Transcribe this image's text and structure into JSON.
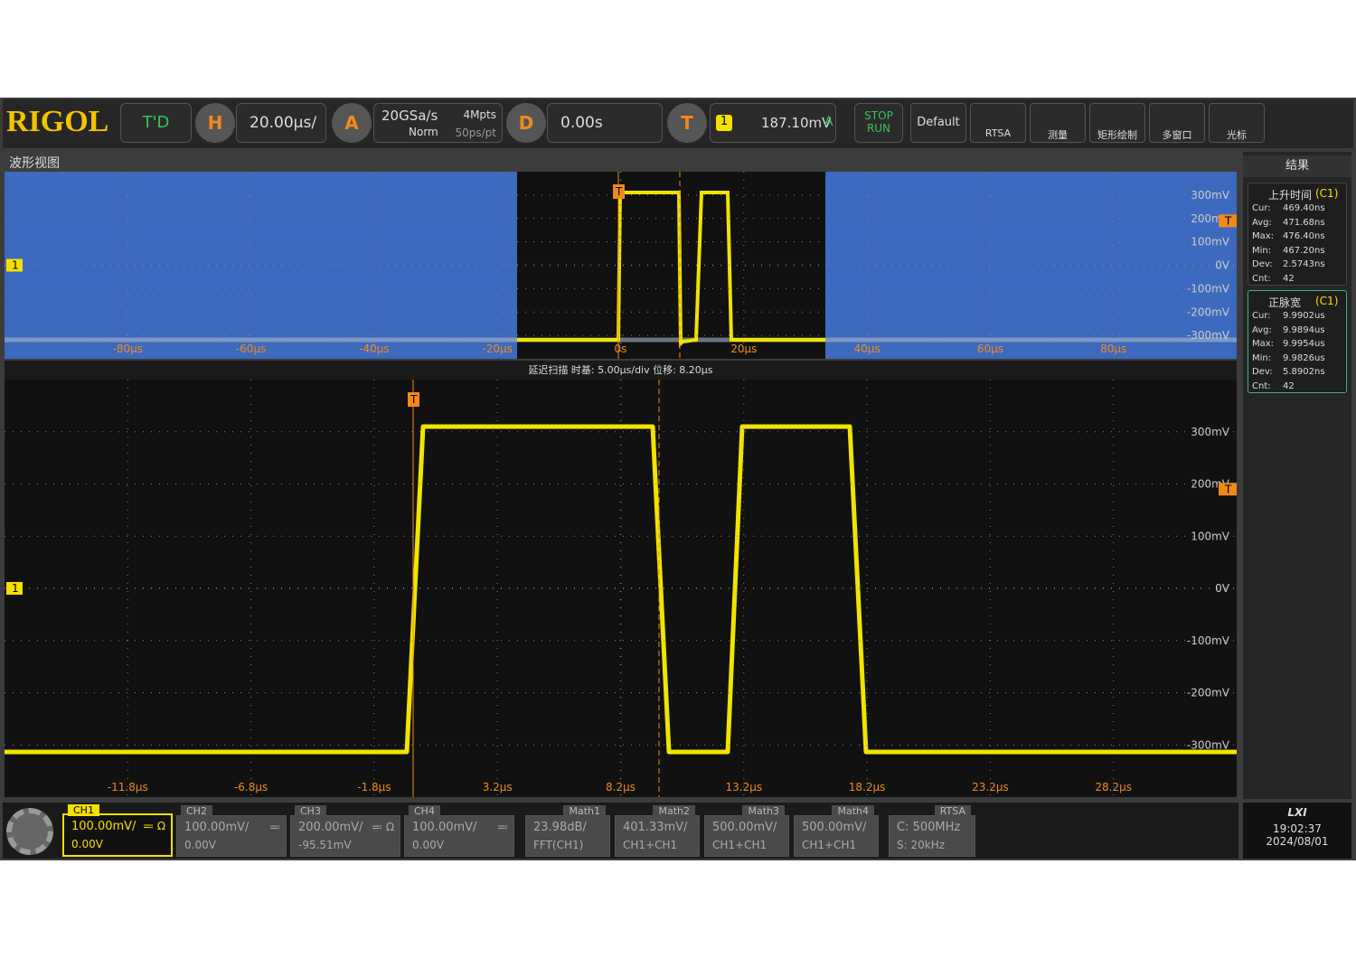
{
  "toolbar": {
    "logo": "RIGOL",
    "mode": "T'D",
    "h_label": "H",
    "timebase": "20.00μs/",
    "a_label": "A",
    "sample_rate": "20GSa/s",
    "memory": "4Mpts",
    "acq_mode": "Norm",
    "resolution": "50ps/pt",
    "d_label": "D",
    "delay": "0.00s",
    "t_label": "T",
    "trigger_source": "1",
    "trigger_level": "187.10mV",
    "trigger_state": "A",
    "stop": "STOP",
    "run": "RUN",
    "buttons": [
      "Default",
      "RTSA",
      "测量",
      "矩形绘制",
      "多窗口",
      "光标"
    ]
  },
  "markers": {
    "channel": "1",
    "trigger": "T"
  },
  "overview": {
    "title": "波形视图",
    "y_labels": [
      "300mV",
      "200mV",
      "100mV",
      "0V",
      "-100mV",
      "-200mV",
      "-300mV"
    ],
    "x_labels": [
      "-80μs",
      "-60μs",
      "-40μs",
      "-20μs",
      "0s",
      "20μs",
      "40μs",
      "60μs",
      "80μs"
    ]
  },
  "zoom": {
    "info": "延迟扫描   时基: 5.00μs/div   位移: 8.20μs",
    "y_labels": [
      "300mV",
      "200mV",
      "100mV",
      "0V",
      "-100mV",
      "-200mV",
      "-300mV"
    ],
    "x_labels": [
      "-11.8μs",
      "-6.8μs",
      "-1.8μs",
      "3.2μs",
      "8.2μs",
      "13.2μs",
      "18.2μs",
      "23.2μs",
      "28.2μs"
    ]
  },
  "results": {
    "title": "结果",
    "panels": [
      {
        "name": "上升时间",
        "source": "(C1)",
        "rows": [
          [
            "Cur:",
            "469.40ns"
          ],
          [
            "Avg:",
            "471.68ns"
          ],
          [
            "Max:",
            "476.40ns"
          ],
          [
            "Min:",
            "467.20ns"
          ],
          [
            "Dev:",
            "2.5743ns"
          ],
          [
            "Cnt:",
            "42"
          ]
        ]
      },
      {
        "name": "正脉宽",
        "source": "(C1)",
        "rows": [
          [
            "Cur:",
            "9.9902us"
          ],
          [
            "Avg:",
            "9.9894us"
          ],
          [
            "Max:",
            "9.9954us"
          ],
          [
            "Min:",
            "9.9826us"
          ],
          [
            "Dev:",
            "5.8902ns"
          ],
          [
            "Cnt:",
            "42"
          ]
        ]
      }
    ]
  },
  "channels": [
    {
      "name": "CH1",
      "scale": "100.00mV/",
      "coupling": "≕ Ω",
      "offset": "0.00V"
    },
    {
      "name": "CH2",
      "scale": "100.00mV/",
      "coupling": "≕",
      "offset": "0.00V"
    },
    {
      "name": "CH3",
      "scale": "200.00mV/",
      "coupling": "≕ Ω",
      "offset": "-95.51mV"
    },
    {
      "name": "CH4",
      "scale": "100.00mV/",
      "coupling": "≕",
      "offset": "0.00V"
    }
  ],
  "maths": [
    {
      "name": "Math1",
      "scale": "23.98dB/",
      "source": "FFT(CH1)"
    },
    {
      "name": "Math2",
      "scale": "401.33mV/",
      "source": "CH1+CH1"
    },
    {
      "name": "Math3",
      "scale": "500.00mV/",
      "source": "CH1+CH1"
    },
    {
      "name": "Math4",
      "scale": "500.00mV/",
      "source": "CH1+CH1"
    }
  ],
  "rtsa": {
    "name": "RTSA",
    "center": "C: 500MHz",
    "span": "S: 20kHz"
  },
  "status": {
    "lxi": "LXI",
    "time": "19:02:37",
    "date": "2024/08/01"
  }
}
